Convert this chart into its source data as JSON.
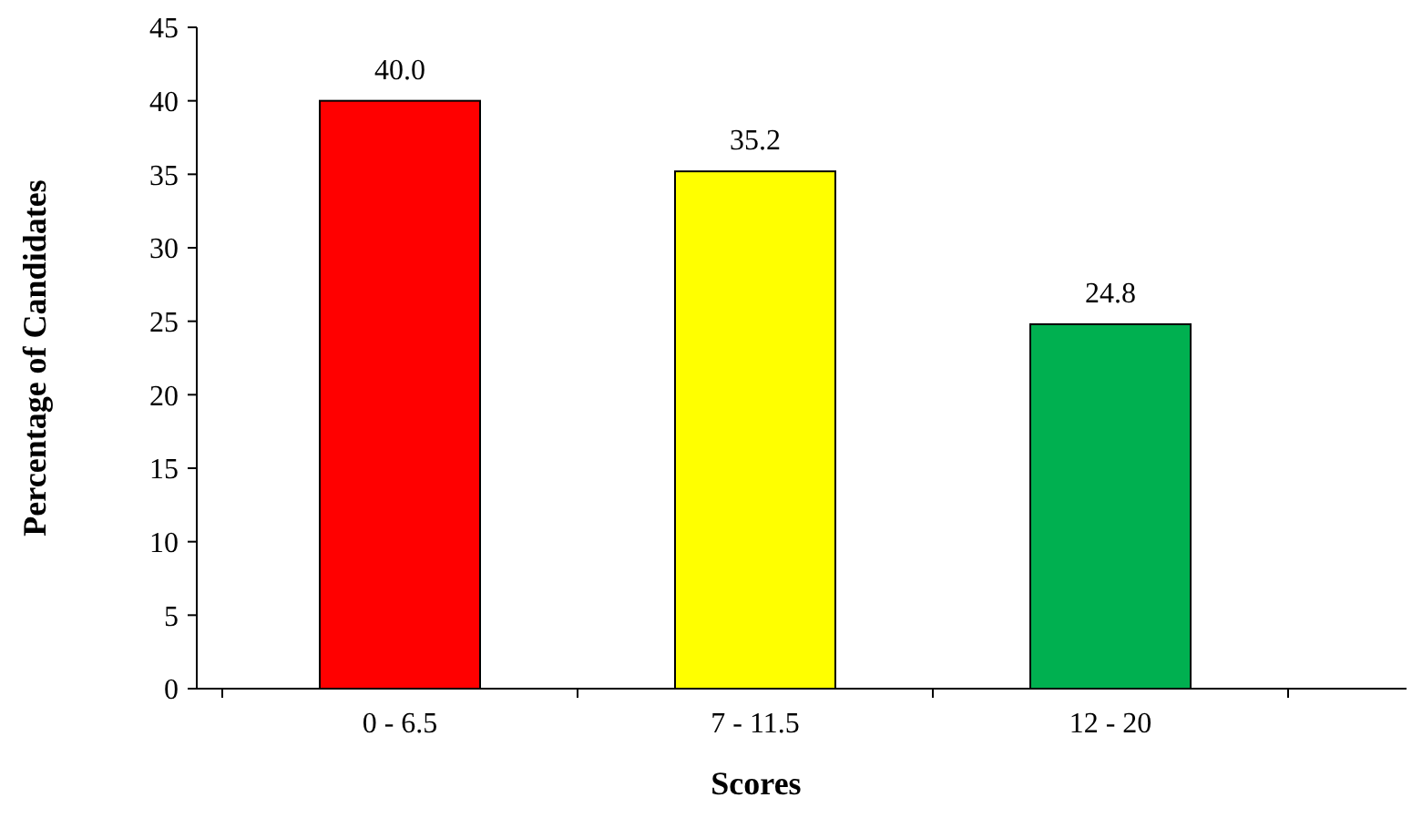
{
  "chart_data": {
    "type": "bar",
    "xlabel": "Scores",
    "ylabel": "Percentage of Candidates",
    "categories": [
      "0 - 6.5",
      "7 - 11.5",
      "12 - 20"
    ],
    "values": [
      40.0,
      35.2,
      24.8
    ],
    "colors": [
      "#ff0000",
      "#ffff00",
      "#00b050"
    ],
    "value_labels": [
      "40.0",
      "35.2",
      "24.8"
    ],
    "ylim": [
      0,
      45
    ],
    "yticks": [
      0,
      5,
      10,
      15,
      20,
      25,
      30,
      35,
      40,
      45
    ],
    "grid": false
  }
}
